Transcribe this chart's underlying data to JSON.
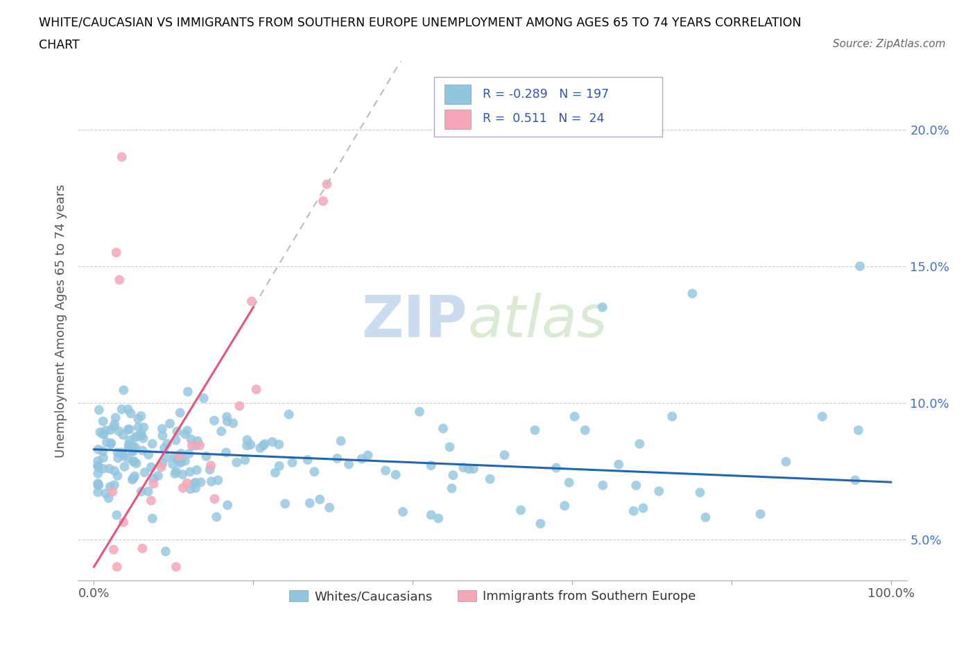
{
  "title_line1": "WHITE/CAUCASIAN VS IMMIGRANTS FROM SOUTHERN EUROPE UNEMPLOYMENT AMONG AGES 65 TO 74 YEARS CORRELATION",
  "title_line2": "CHART",
  "source_text": "Source: ZipAtlas.com",
  "ylabel": "Unemployment Among Ages 65 to 74 years",
  "blue_color": "#92c5de",
  "pink_color": "#f4a7b9",
  "blue_line_color": "#2166ac",
  "pink_line_color": "#e8537a",
  "gray_dash_color": "#bbbbbb",
  "legend_box_color": "#e8e8f0",
  "legend_border_color": "#aaaacc",
  "watermark_color": "#d0daea"
}
